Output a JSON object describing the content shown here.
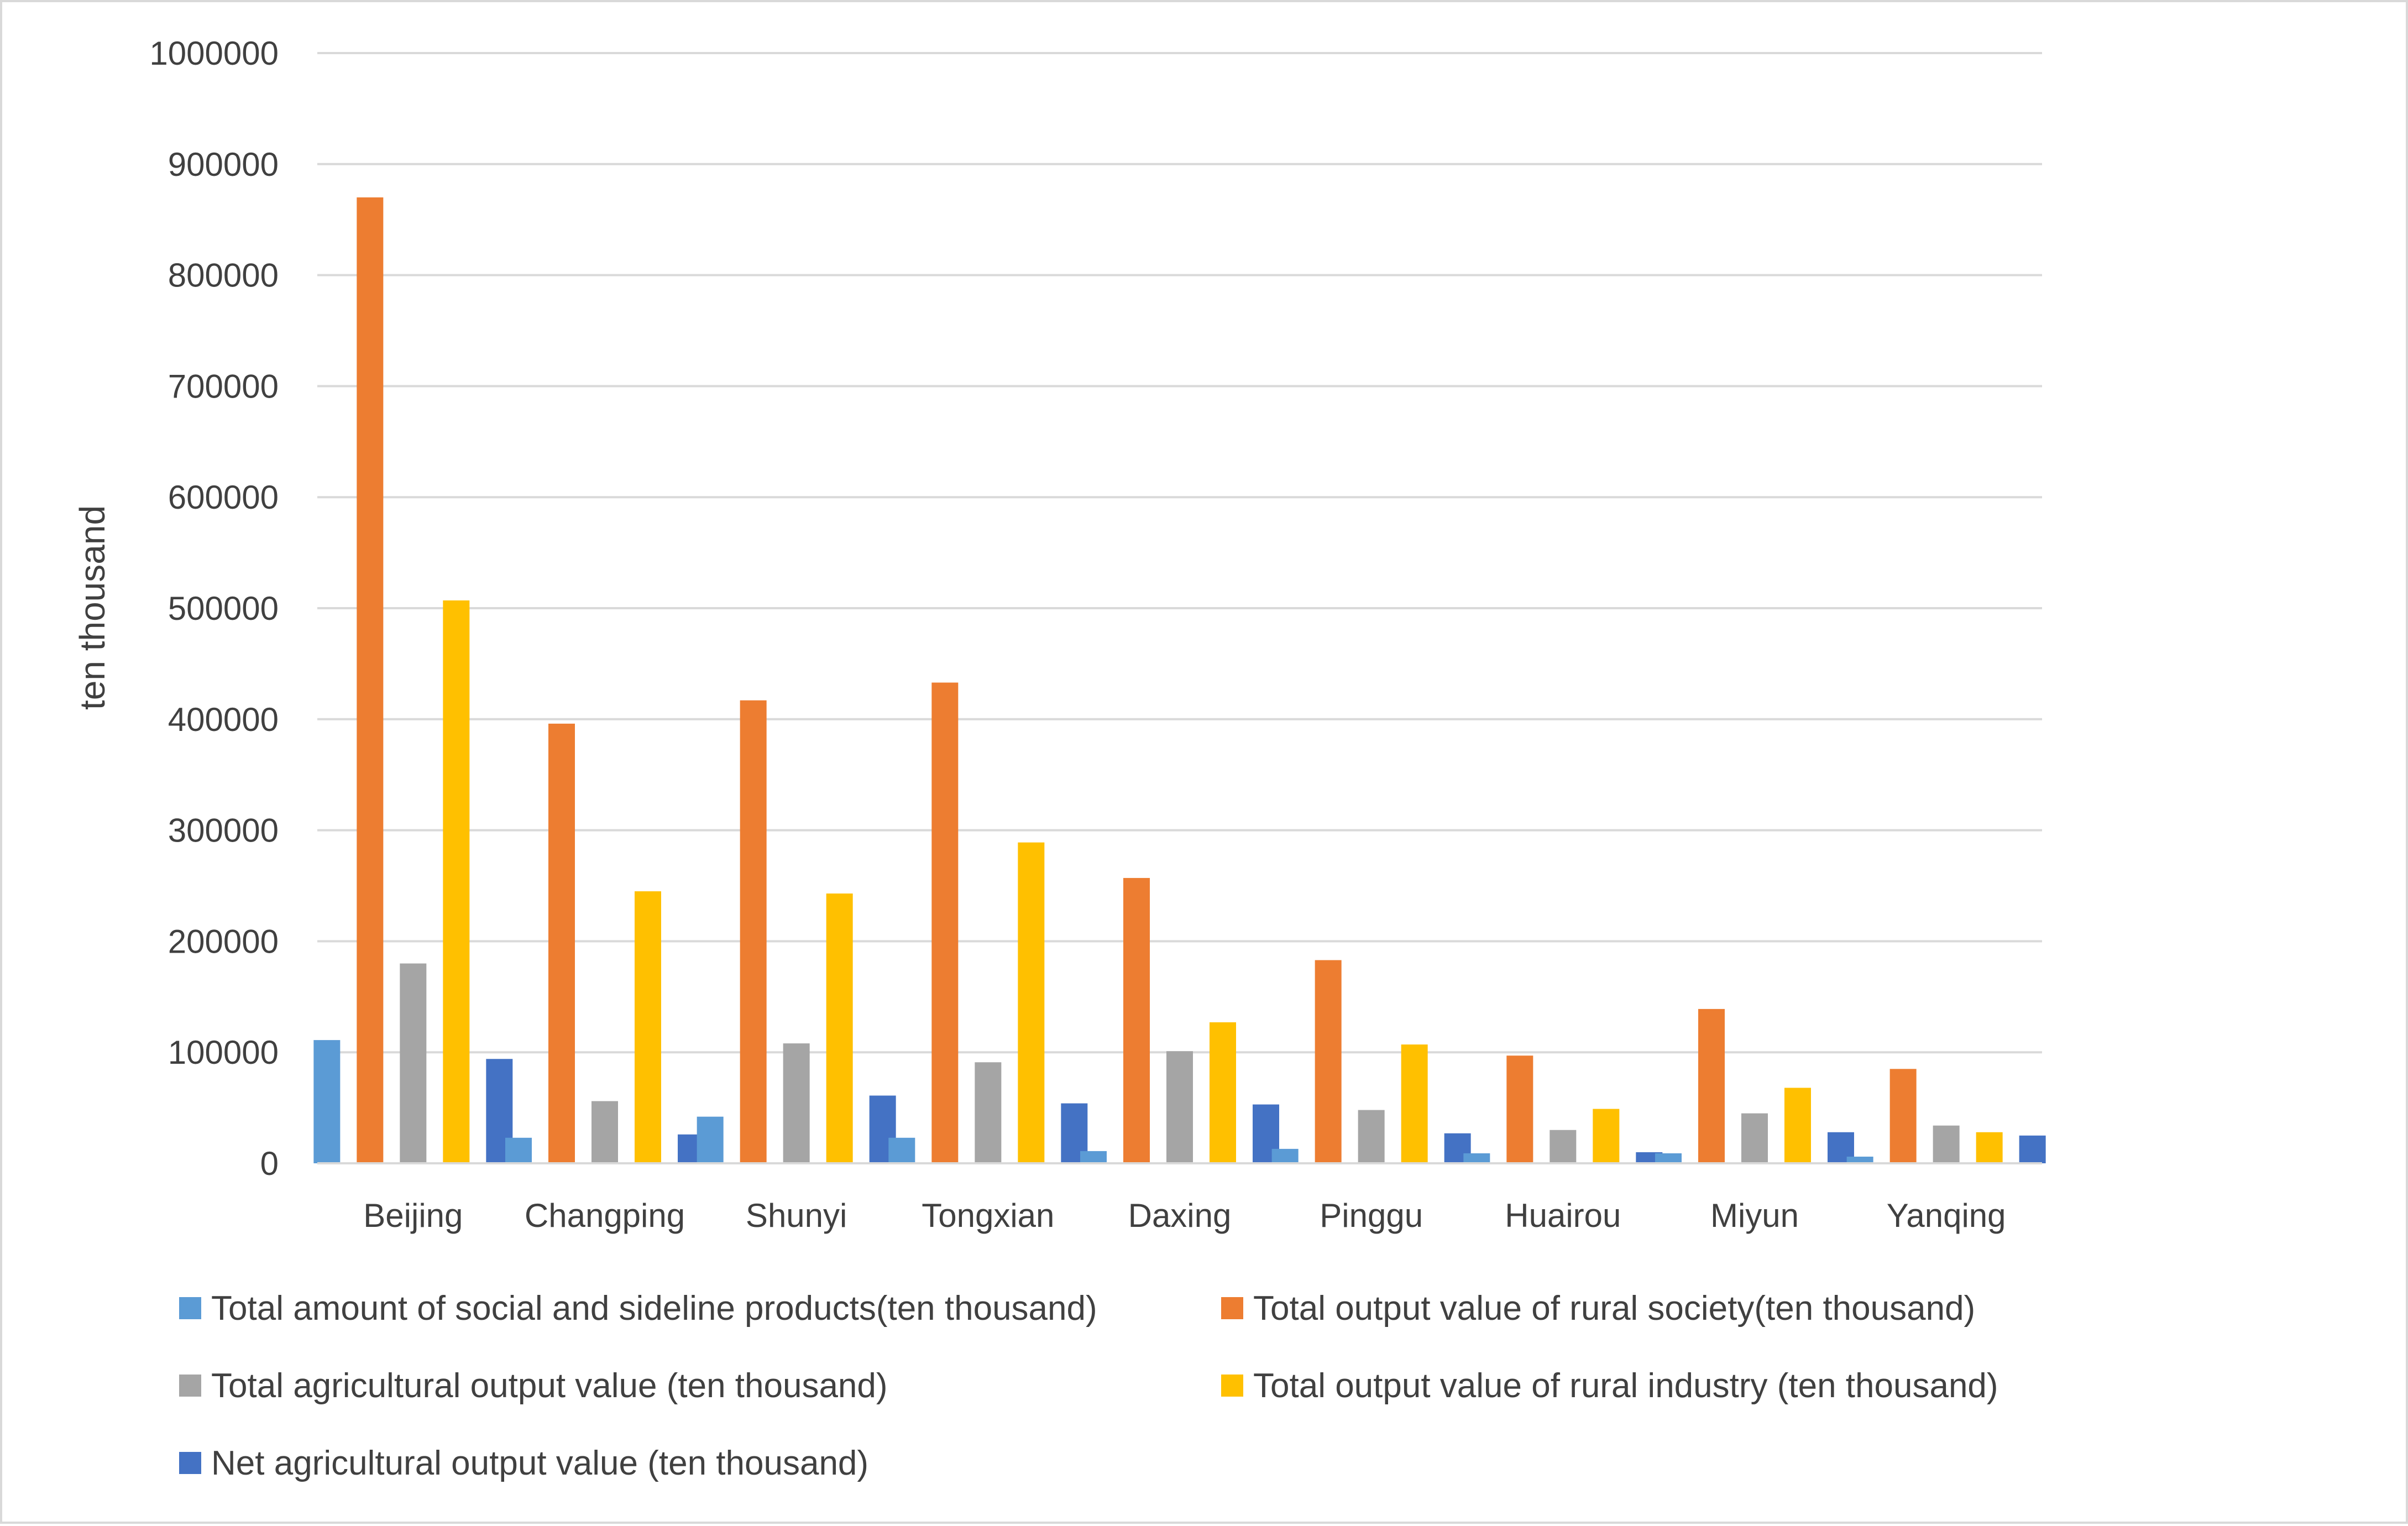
{
  "chart_data": {
    "type": "bar",
    "title": "",
    "xlabel": "",
    "ylabel": "ten thousand",
    "ylim": [
      0,
      1000000
    ],
    "yticks": [
      0,
      100000,
      200000,
      300000,
      400000,
      500000,
      600000,
      700000,
      800000,
      900000,
      1000000
    ],
    "grid": true,
    "legend_position": "bottom",
    "categories": [
      "Beijing",
      "Changping",
      "Shunyi",
      "Tongxian",
      "Daxing",
      "Pinggu",
      "Huairou",
      "Miyun",
      "Yanqing"
    ],
    "series": [
      {
        "name": "Total amount of social and sideline products(ten thousand)",
        "color": "#5b9bd5",
        "values": [
          111000,
          23000,
          42000,
          23000,
          11000,
          13000,
          9000,
          9000,
          6000
        ]
      },
      {
        "name": "Total output value of rural society(ten thousand)",
        "color": "#ed7d31",
        "values": [
          870000,
          396000,
          417000,
          433000,
          257000,
          183000,
          97000,
          139000,
          85000
        ]
      },
      {
        "name": "Total agricultural output value (ten thousand)",
        "color": "#a5a5a5",
        "values": [
          180000,
          56000,
          108000,
          91000,
          101000,
          48000,
          30000,
          45000,
          34000
        ]
      },
      {
        "name": "Total output value of rural industry (ten thousand)",
        "color": "#ffc000",
        "values": [
          507000,
          245000,
          243000,
          289000,
          127000,
          107000,
          49000,
          68000,
          28000
        ]
      },
      {
        "name": "Net agricultural output value (ten thousand)",
        "color": "#4472c4",
        "values": [
          94000,
          26000,
          61000,
          54000,
          53000,
          27000,
          10000,
          28000,
          25000
        ]
      }
    ]
  }
}
